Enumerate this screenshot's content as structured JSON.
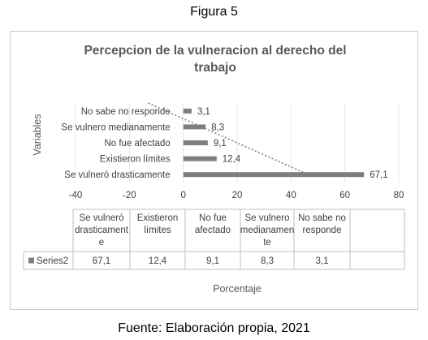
{
  "figure_caption": "Figura 5",
  "source_note": "Fuente: Elaboración propia, 2021",
  "colors": {
    "bar": "#7f7f7f",
    "trendline": "#7f7f7f",
    "grid": "#d9d9d9",
    "text": "#404040",
    "title": "#595959"
  },
  "chart_data": {
    "type": "bar",
    "orientation": "horizontal",
    "title_lines": [
      "Percepcion de la vulneracion al derecho del",
      "trabajo"
    ],
    "xlabel": "Porcentaje",
    "ylabel": "Variables",
    "xlim": [
      -40,
      80
    ],
    "xticks": [
      -40,
      -20,
      0,
      20,
      40,
      60,
      80
    ],
    "categories": [
      "Se vulneró drasticamente",
      "Existieron límites",
      "No fue afectado",
      "Se vulnero medianamente",
      "No sabe no responde"
    ],
    "series": [
      {
        "name": "Series2",
        "values": [
          67.1,
          12.4,
          9.1,
          8.3,
          3.1
        ]
      }
    ],
    "value_labels": [
      "67,1",
      "12,4",
      "9,1",
      "8,3",
      "3,1"
    ],
    "trendline": "linear",
    "data_table": {
      "headers": [
        [
          "Se vulneró",
          "drasticament",
          "e"
        ],
        [
          "Existieron",
          "límites"
        ],
        [
          "No fue",
          "afectado"
        ],
        [
          "Se vulnero",
          "medianamen",
          "te"
        ],
        [
          "No sabe no",
          "responde"
        ]
      ],
      "series_label": "Series2",
      "values": [
        "67,1",
        "12,4",
        "9,1",
        "8,3",
        "3,1"
      ]
    }
  }
}
